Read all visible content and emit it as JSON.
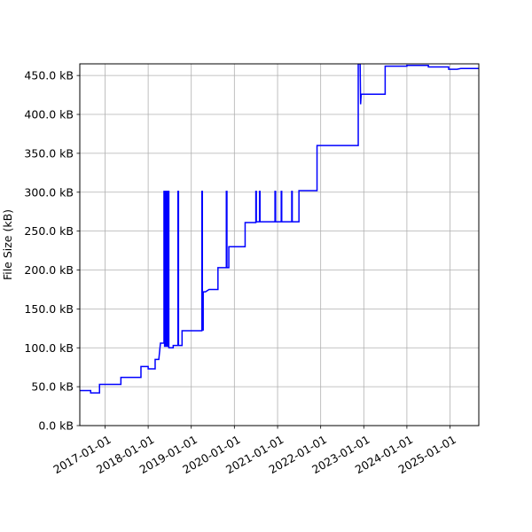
{
  "chart_data": {
    "type": "line",
    "ylabel": "File Size (kB)",
    "xlabel": "",
    "title": "",
    "grid": true,
    "line_color": "#0000ff",
    "x_axis_type": "date",
    "xlim": [
      "2016-06-01",
      "2025-09-01"
    ],
    "ylim": [
      0,
      465
    ],
    "x_ticks": [
      "2017-01-01",
      "2018-01-01",
      "2019-01-01",
      "2020-01-01",
      "2021-01-01",
      "2022-01-01",
      "2023-01-01",
      "2024-01-01",
      "2025-01-01"
    ],
    "y_ticks": [
      {
        "value": 0,
        "label": "0.0 kB"
      },
      {
        "value": 50,
        "label": "50.0 kB"
      },
      {
        "value": 100,
        "label": "100.0 kB"
      },
      {
        "value": 150,
        "label": "150.0 kB"
      },
      {
        "value": 200,
        "label": "200.0 kB"
      },
      {
        "value": 250,
        "label": "250.0 kB"
      },
      {
        "value": 300,
        "label": "300.0 kB"
      },
      {
        "value": 350,
        "label": "350.0 kB"
      },
      {
        "value": 400,
        "label": "400.0 kB"
      },
      {
        "value": 450,
        "label": "450.0 kB"
      }
    ],
    "series": [
      {
        "points": [
          [
            "2016-06-01",
            45
          ],
          [
            "2016-09-01",
            45
          ],
          [
            "2016-09-01",
            42
          ],
          [
            "2016-11-15",
            42
          ],
          [
            "2016-11-15",
            53
          ],
          [
            "2017-05-15",
            53
          ],
          [
            "2017-05-15",
            62
          ],
          [
            "2017-11-01",
            62
          ],
          [
            "2017-11-01",
            76
          ],
          [
            "2018-01-01",
            76
          ],
          [
            "2018-01-01",
            73
          ],
          [
            "2018-03-01",
            73
          ],
          [
            "2018-03-01",
            85
          ],
          [
            "2018-04-01",
            85
          ],
          [
            "2018-04-15",
            106
          ],
          [
            "2018-05-15",
            106
          ],
          [
            "2018-05-15",
            301
          ],
          [
            "2018-05-20",
            301
          ],
          [
            "2018-05-20",
            102
          ],
          [
            "2018-05-25",
            102
          ],
          [
            "2018-05-25",
            301
          ],
          [
            "2018-06-01",
            301
          ],
          [
            "2018-06-01",
            102
          ],
          [
            "2018-06-05",
            102
          ],
          [
            "2018-06-05",
            301
          ],
          [
            "2018-06-15",
            301
          ],
          [
            "2018-06-15",
            102
          ],
          [
            "2018-06-20",
            102
          ],
          [
            "2018-06-20",
            301
          ],
          [
            "2018-06-25",
            301
          ],
          [
            "2018-06-25",
            100
          ],
          [
            "2018-08-01",
            100
          ],
          [
            "2018-08-01",
            103
          ],
          [
            "2018-09-10",
            103
          ],
          [
            "2018-09-10",
            301
          ],
          [
            "2018-09-15",
            301
          ],
          [
            "2018-09-15",
            103
          ],
          [
            "2018-10-15",
            103
          ],
          [
            "2018-10-15",
            122
          ],
          [
            "2019-03-01",
            122
          ],
          [
            "2019-04-01",
            122
          ],
          [
            "2019-04-01",
            301
          ],
          [
            "2019-04-05",
            301
          ],
          [
            "2019-04-05",
            123
          ],
          [
            "2019-04-12",
            123
          ],
          [
            "2019-04-12",
            172
          ],
          [
            "2019-05-01",
            172
          ],
          [
            "2019-06-01",
            175
          ],
          [
            "2019-08-15",
            175
          ],
          [
            "2019-08-15",
            203
          ],
          [
            "2019-10-25",
            203
          ],
          [
            "2019-10-25",
            301
          ],
          [
            "2019-10-30",
            301
          ],
          [
            "2019-10-30",
            203
          ],
          [
            "2019-11-15",
            203
          ],
          [
            "2019-11-15",
            230
          ],
          [
            "2020-04-01",
            230
          ],
          [
            "2020-04-01",
            261
          ],
          [
            "2020-07-01",
            261
          ],
          [
            "2020-07-01",
            301
          ],
          [
            "2020-07-05",
            301
          ],
          [
            "2020-07-05",
            262
          ],
          [
            "2020-08-01",
            262
          ],
          [
            "2020-08-01",
            301
          ],
          [
            "2020-08-05",
            301
          ],
          [
            "2020-08-05",
            262
          ],
          [
            "2020-12-10",
            262
          ],
          [
            "2020-12-10",
            301
          ],
          [
            "2020-12-15",
            301
          ],
          [
            "2020-12-15",
            262
          ],
          [
            "2021-02-01",
            262
          ],
          [
            "2021-02-01",
            301
          ],
          [
            "2021-02-05",
            301
          ],
          [
            "2021-02-05",
            262
          ],
          [
            "2021-05-01",
            262
          ],
          [
            "2021-05-01",
            301
          ],
          [
            "2021-05-05",
            301
          ],
          [
            "2021-05-05",
            262
          ],
          [
            "2021-07-01",
            262
          ],
          [
            "2021-07-01",
            302
          ],
          [
            "2021-12-01",
            302
          ],
          [
            "2021-12-01",
            360
          ],
          [
            "2022-11-15",
            360
          ],
          [
            "2022-11-15",
            465
          ],
          [
            "2022-12-01",
            465
          ],
          [
            "2022-12-05",
            413
          ],
          [
            "2022-12-10",
            426
          ],
          [
            "2023-07-01",
            426
          ],
          [
            "2023-07-01",
            462
          ],
          [
            "2024-01-01",
            462
          ],
          [
            "2024-01-01",
            463
          ],
          [
            "2024-07-01",
            463
          ],
          [
            "2024-07-01",
            461
          ],
          [
            "2024-12-20",
            461
          ],
          [
            "2024-12-20",
            458
          ],
          [
            "2025-03-01",
            458
          ],
          [
            "2025-04-01",
            459
          ],
          [
            "2025-09-01",
            459
          ]
        ]
      }
    ]
  }
}
